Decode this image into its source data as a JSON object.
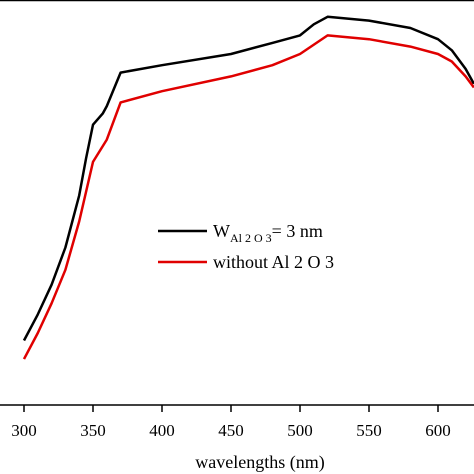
{
  "chart_data": {
    "type": "line",
    "xlabel": "wavelengths (nm)",
    "ylabel": "",
    "xlim": [
      297,
      627
    ],
    "ylim": [
      0,
      1
    ],
    "x_ticks": [
      300,
      350,
      400,
      450,
      500,
      550,
      600
    ],
    "grid": false,
    "legend_position": "center-right",
    "series": [
      {
        "legend_main": "W",
        "legend_sub": "Al 2 O 3",
        "legend_suffix": "= 3 nm",
        "color": "#000000",
        "points": [
          [
            300,
            0.16
          ],
          [
            310,
            0.23
          ],
          [
            320,
            0.31
          ],
          [
            330,
            0.41
          ],
          [
            340,
            0.55
          ],
          [
            345,
            0.65
          ],
          [
            350,
            0.74
          ],
          [
            357,
            0.77
          ],
          [
            360,
            0.79
          ],
          [
            370,
            0.88
          ],
          [
            400,
            0.9
          ],
          [
            450,
            0.93
          ],
          [
            480,
            0.96
          ],
          [
            500,
            0.98
          ],
          [
            510,
            1.01
          ],
          [
            520,
            1.03
          ],
          [
            550,
            1.02
          ],
          [
            580,
            1.0
          ],
          [
            600,
            0.97
          ],
          [
            610,
            0.94
          ],
          [
            620,
            0.89
          ],
          [
            626,
            0.85
          ]
        ]
      },
      {
        "legend_text": "without Al 2 O 3",
        "color": "#e00000",
        "points": [
          [
            300,
            0.11
          ],
          [
            310,
            0.18
          ],
          [
            320,
            0.26
          ],
          [
            330,
            0.35
          ],
          [
            340,
            0.48
          ],
          [
            350,
            0.64
          ],
          [
            360,
            0.7
          ],
          [
            370,
            0.8
          ],
          [
            400,
            0.83
          ],
          [
            450,
            0.87
          ],
          [
            480,
            0.9
          ],
          [
            500,
            0.93
          ],
          [
            520,
            0.98
          ],
          [
            550,
            0.97
          ],
          [
            580,
            0.95
          ],
          [
            600,
            0.93
          ],
          [
            610,
            0.91
          ],
          [
            620,
            0.87
          ],
          [
            626,
            0.84
          ]
        ]
      }
    ]
  }
}
